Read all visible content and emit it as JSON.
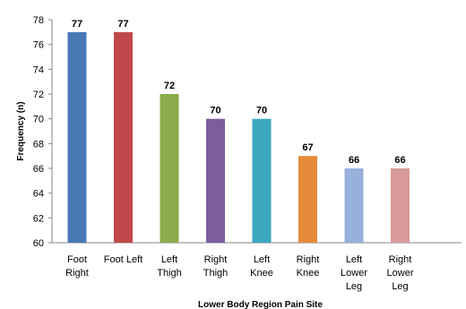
{
  "chart_data": {
    "type": "bar",
    "title": "",
    "xlabel": "Lower Body Region Pain Site",
    "ylabel": "Frequency (n)",
    "ylim": [
      60,
      78
    ],
    "yticks": [
      60,
      62,
      64,
      66,
      68,
      70,
      72,
      74,
      76,
      78
    ],
    "grid": false,
    "legend": "none",
    "categories": [
      [
        "Foot",
        "Right"
      ],
      [
        "Foot Left"
      ],
      [
        "Left",
        "Thigh"
      ],
      [
        "Right",
        "Thigh"
      ],
      [
        "Left",
        "Knee"
      ],
      [
        "Right",
        "Knee"
      ],
      [
        "Left",
        "Lower",
        "Leg"
      ],
      [
        "Right",
        "Lower",
        "Leg"
      ]
    ],
    "values": [
      77,
      77,
      72,
      70,
      70,
      67,
      66,
      66
    ],
    "colors": [
      "#4a78b5",
      "#c0484a",
      "#8aab4b",
      "#7c5d9e",
      "#3aa7bf",
      "#e58a39",
      "#98b1db",
      "#d99a9a"
    ]
  }
}
